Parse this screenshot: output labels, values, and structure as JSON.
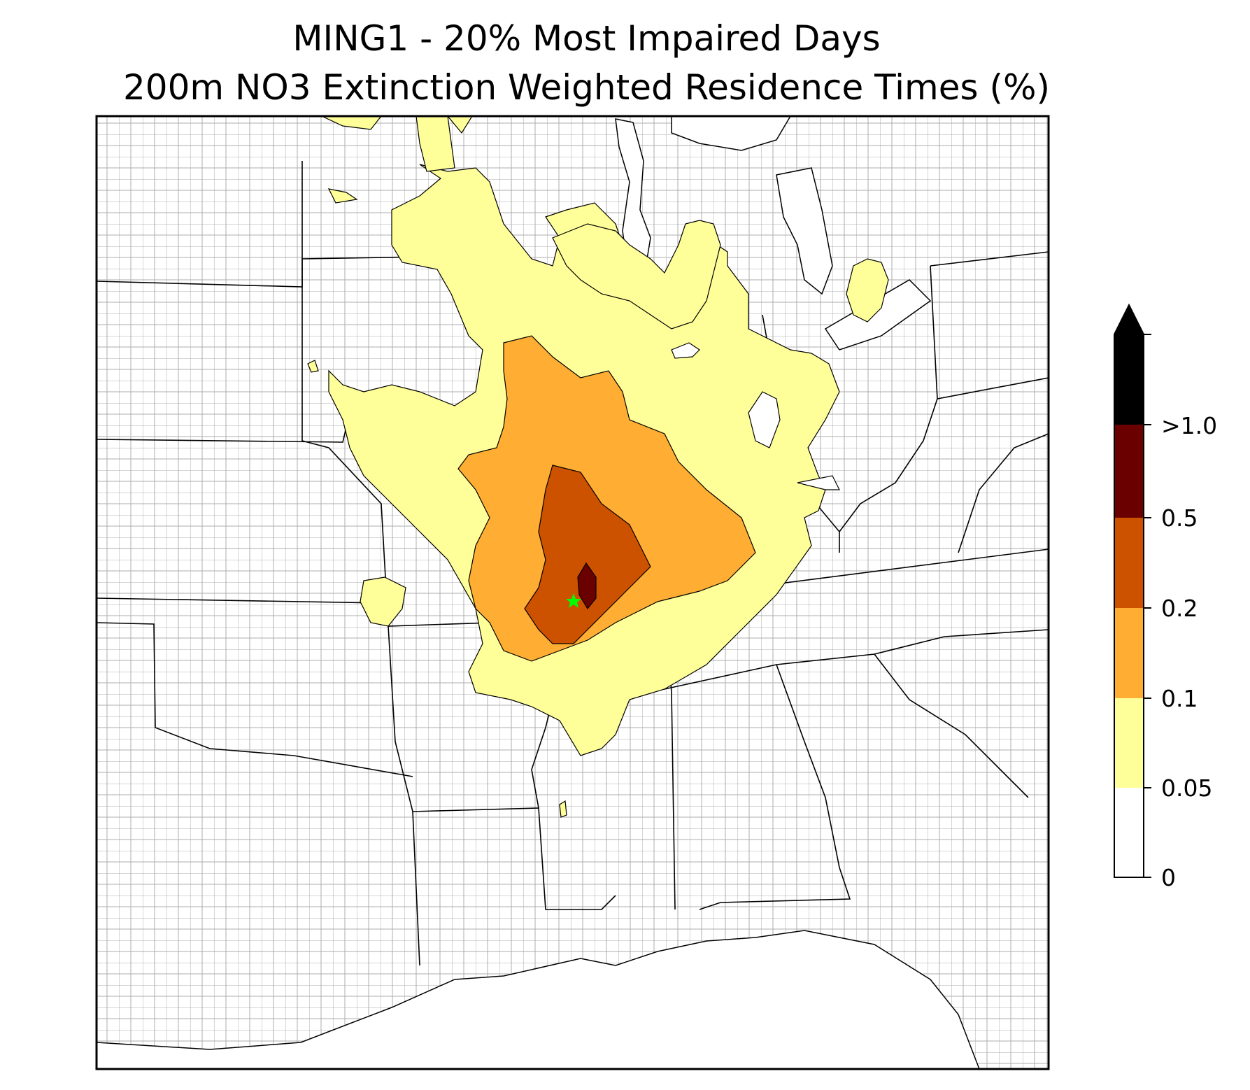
{
  "title": {
    "line1": "MING1 - 20% Most Impaired Days",
    "line2": "200m NO3 Extinction Weighted Residence Times (%)"
  },
  "colorbar": {
    "levels": [
      {
        "label": "0",
        "color": "#ffffff"
      },
      {
        "label": "0.05",
        "color": "#ffff99"
      },
      {
        "label": "0.1",
        "color": "#ffad33"
      },
      {
        "label": "0.2",
        "color": "#cc5200"
      },
      {
        "label": "0.5",
        "color": "#6b0000"
      },
      {
        "label": ">1.0",
        "color": "#000000"
      }
    ],
    "extend": "max"
  },
  "map": {
    "background": "#ffffff",
    "state_line_color": "#000000",
    "county_line_color": "#9a9a9a",
    "receptor_marker": "star",
    "receptor_color": "#00ff00"
  }
}
